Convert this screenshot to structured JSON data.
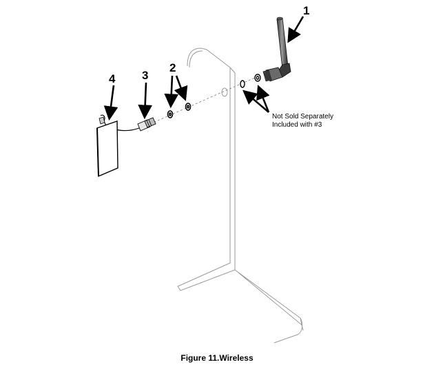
{
  "callouts": {
    "c1": "1",
    "c2": "2",
    "c3": "3",
    "c4": "4"
  },
  "note": {
    "line1": "Not Sold Separately",
    "line2": "Included with #3"
  },
  "caption": "Figure 11.Wireless",
  "colors": {
    "line": "#000000",
    "panel_edge": "#9a9a9a",
    "antenna_dark": "#2a2a2a",
    "antenna_light": "#8a8a8a"
  }
}
